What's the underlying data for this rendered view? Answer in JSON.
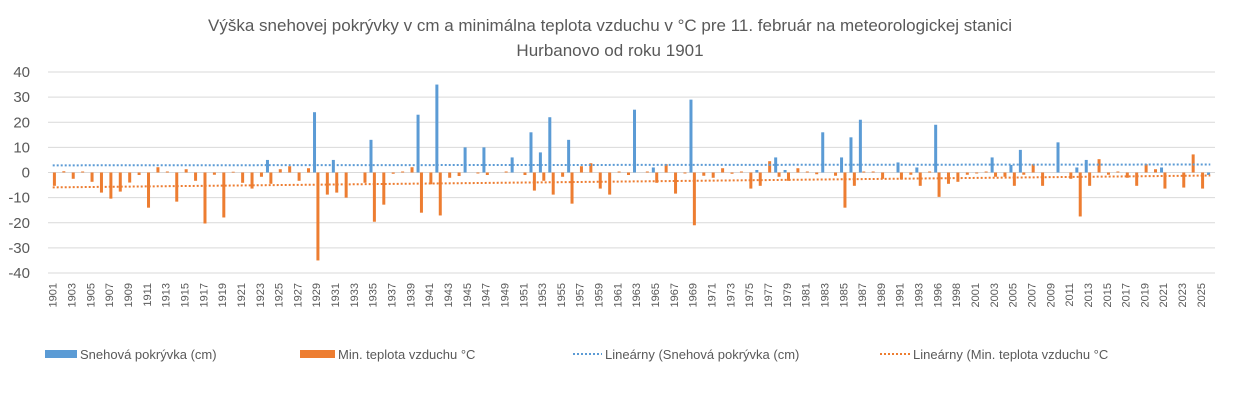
{
  "chart_data": {
    "type": "bar",
    "title_lines": [
      "Výška snehovej pokrývky v cm a minimálna teplota  vzduchu v  °C pre 11. február na meteorologickej stanici",
      "Hurbanovo od roku 1901"
    ],
    "xlabel": "",
    "ylabel": "",
    "ylim": [
      -40,
      40
    ],
    "yticks": [
      "40",
      "30",
      "20",
      "10",
      "0",
      "-10",
      "-20",
      "-30",
      "-40"
    ],
    "grid": true,
    "legend_position": "bottom",
    "colors": {
      "snow": "#5B9BD5",
      "temp": "#ED7D31",
      "grid": "#D9D9D9",
      "text": "#595959"
    },
    "categories": [
      "1901",
      "1902",
      "1903",
      "1904",
      "1905",
      "1906",
      "1907",
      "1908",
      "1909",
      "1910",
      "1911",
      "1912",
      "1913",
      "1914",
      "1915",
      "1916",
      "1917",
      "1918",
      "1919",
      "1920",
      "1921",
      "1922",
      "1923",
      "1924",
      "1925",
      "1926",
      "1927",
      "1928",
      "1929",
      "1930",
      "1931",
      "1932",
      "1933",
      "1934",
      "1935",
      "1936",
      "1937",
      "1938",
      "1939",
      "1940",
      "1941",
      "1942",
      "1943",
      "1944",
      "1945",
      "1946",
      "1947",
      "1948",
      "1949",
      "1950",
      "1951",
      "1952",
      "1953",
      "1954",
      "1955",
      "1956",
      "1957",
      "1958",
      "1959",
      "1960",
      "1961",
      "1962",
      "1963",
      "1964",
      "1965",
      "1966",
      "1967",
      "1968",
      "1969",
      "1970",
      "1971",
      "1972",
      "1973",
      "1974",
      "1975",
      "1976",
      "1977",
      "1978",
      "1979",
      "1980",
      "1981",
      "1982",
      "1983",
      "1984",
      "1985",
      "1986",
      "1987",
      "1988",
      "1989",
      "1990",
      "1991",
      "1992",
      "1993",
      "1995",
      "1996",
      "1997",
      "1998",
      "2000",
      "2001",
      "2002",
      "2003",
      "2004",
      "2005",
      "2006",
      "2007",
      "2008",
      "2009",
      "2010",
      "2011",
      "2012",
      "2013",
      "2014",
      "2015",
      "2016",
      "2017",
      "2018",
      "2019",
      "2020",
      "2021",
      "2022",
      "2023",
      "2024",
      "2025",
      "2026"
    ],
    "series": [
      {
        "name": "Snehová pokrývka (cm)",
        "type": "bar",
        "values": [
          0,
          0,
          0,
          0,
          0,
          0,
          0,
          0,
          0,
          0,
          0,
          0,
          0,
          0,
          0,
          0,
          0,
          0,
          0,
          0,
          0,
          0,
          0,
          5,
          0,
          0,
          0,
          0,
          24,
          0,
          5,
          0,
          0,
          0,
          13,
          0,
          0,
          0,
          0,
          23,
          0,
          35,
          0,
          0,
          10,
          0,
          10,
          0,
          0,
          6,
          0,
          16,
          8,
          22,
          0,
          13,
          0,
          0,
          0,
          0,
          0,
          0,
          25,
          0,
          2,
          0,
          0,
          0,
          29,
          0,
          0,
          0,
          0,
          0,
          0,
          1,
          0,
          6,
          1,
          0,
          0,
          0,
          16,
          0,
          6,
          14,
          21,
          0,
          0,
          0,
          4,
          0,
          2,
          0,
          19,
          0,
          0,
          0,
          0,
          0,
          6,
          0,
          3,
          9,
          0,
          0,
          0,
          12,
          0,
          2,
          5,
          0,
          0,
          0,
          0,
          0,
          0,
          0,
          2,
          0,
          0,
          0,
          0,
          -1
        ]
      },
      {
        "name": "Min. teplota vzduchu °C",
        "type": "bar",
        "values": [
          -5.3,
          0.5,
          -2.5,
          0.4,
          -3.7,
          -8,
          -10.4,
          -7.6,
          -4,
          -1,
          -14,
          2.1,
          0.4,
          -11.6,
          1.3,
          -3.3,
          -20.3,
          -0.9,
          -17.9,
          0.3,
          -4.1,
          -6.4,
          -1.7,
          -4.5,
          1.3,
          2.5,
          -3.3,
          1.7,
          -35,
          -8.8,
          -8,
          -10,
          0,
          -4.1,
          -19.6,
          -12.8,
          -0.5,
          0.4,
          2.1,
          -16,
          -4.7,
          -17.1,
          -2.1,
          -1.4,
          0,
          -0.4,
          -1,
          0,
          0.4,
          0,
          -1,
          -7.2,
          -3.3,
          -8.8,
          -1.7,
          -12.4,
          2.5,
          3.7,
          -6.4,
          -8.8,
          0.4,
          -1,
          0,
          0.4,
          -4.1,
          3.3,
          -8.4,
          -0.4,
          -21,
          -1.3,
          -2.1,
          1.7,
          -0.5,
          0.4,
          -6.4,
          -5.3,
          4.5,
          -1.7,
          -3.3,
          1.7,
          0.4,
          -0.7,
          0,
          -1.3,
          -14,
          -5.3,
          0.4,
          0.4,
          -2.5,
          0,
          -2.8,
          -0.9,
          -5.3,
          0.4,
          -9.7,
          -4.5,
          -3.7,
          -0.9,
          -0.4,
          0.4,
          -1.7,
          -1.7,
          -5.3,
          -0.9,
          3.3,
          -5.3,
          0,
          0,
          -2.5,
          -17.5,
          -5.3,
          5.3,
          -0.9,
          0.4,
          -2.1,
          -5.3,
          3.3,
          1.3,
          -6.4,
          0,
          -6,
          7.2,
          -6.4,
          0
        ]
      },
      {
        "name": "Lineárny (Snehová pokrývka (cm)",
        "type": "trendline",
        "of": 0
      },
      {
        "name": "Lineárny (Min. teplota vzduchu °C",
        "type": "trendline",
        "of": 1
      }
    ]
  }
}
